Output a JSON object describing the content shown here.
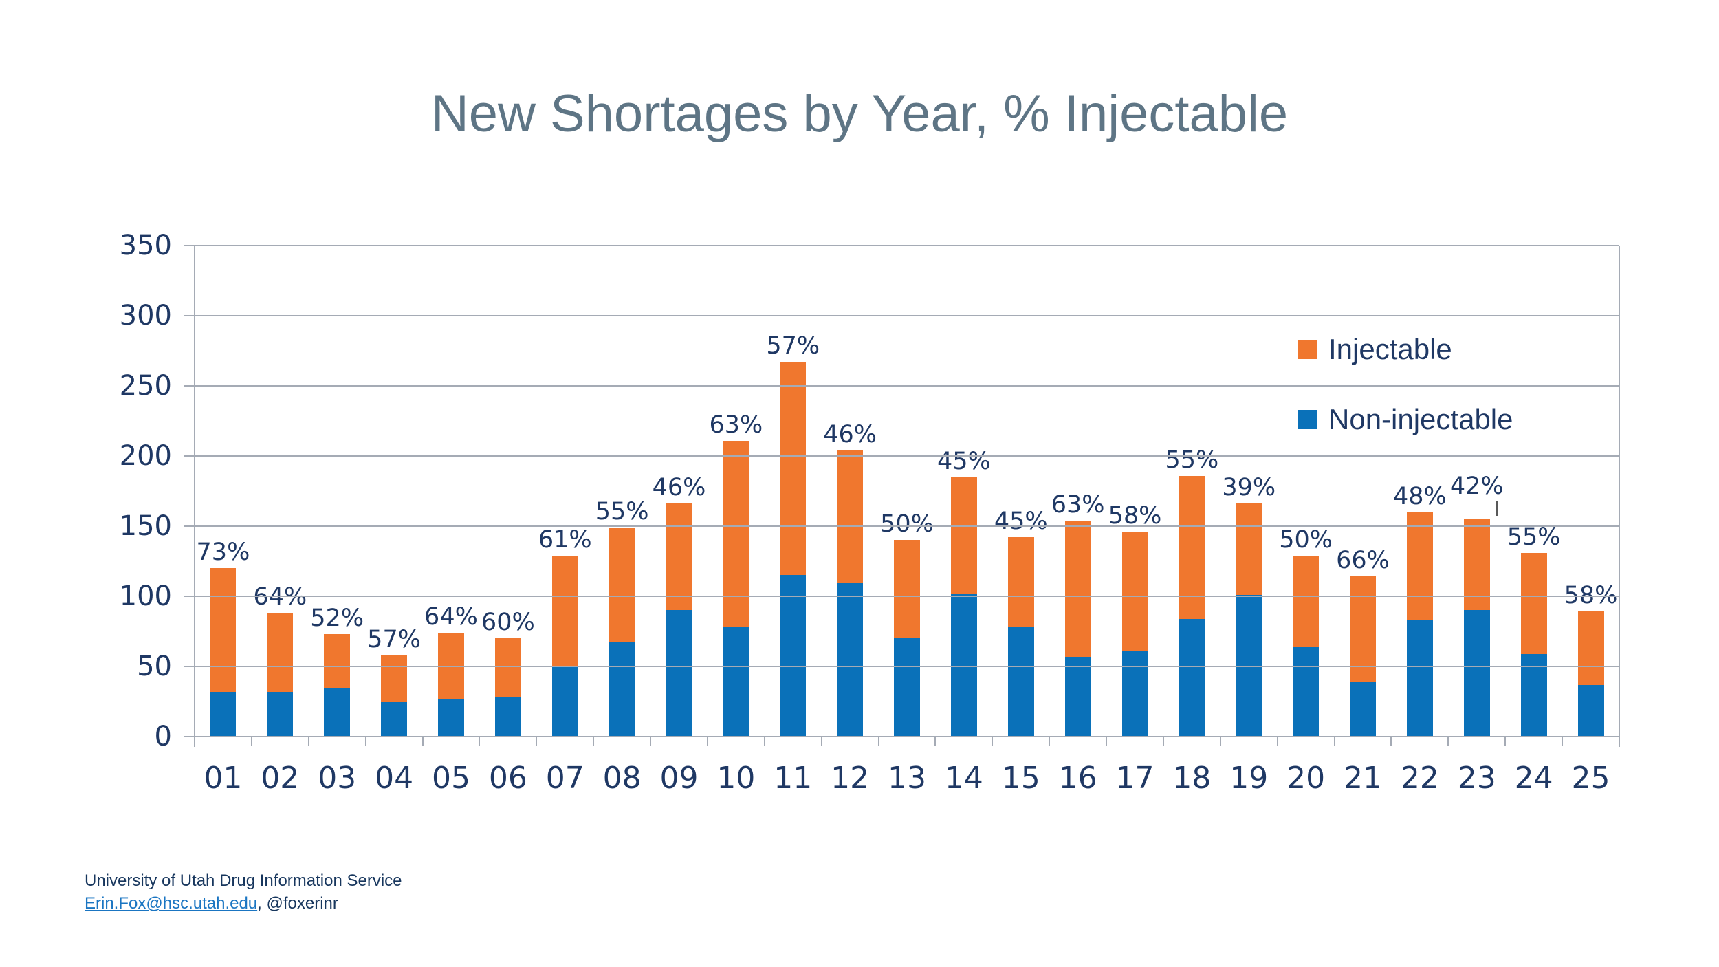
{
  "title": "New Shortages by Year, % Injectable",
  "legend": [
    {
      "label": "Injectable",
      "color": "#F0772E"
    },
    {
      "label": "Non-injectable",
      "color": "#0A71B9"
    }
  ],
  "y_axis": {
    "tick_labels": [
      "350",
      "300",
      "250",
      "200",
      "150",
      "100",
      "50",
      "0"
    ]
  },
  "footer": {
    "line1": "University of Utah Drug Information Service",
    "email": "Erin.Fox@hsc.utah.edu",
    "rest": ", @foxerinr"
  },
  "chart_data": {
    "type": "bar",
    "stacked": true,
    "title": "New Shortages by Year, % Injectable",
    "categories": [
      "01",
      "02",
      "03",
      "04",
      "05",
      "06",
      "07",
      "08",
      "09",
      "10",
      "11",
      "12",
      "13",
      "14",
      "15",
      "16",
      "17",
      "18",
      "19",
      "20",
      "21",
      "22",
      "23",
      "24",
      "25"
    ],
    "series": [
      {
        "name": "Non-injectable",
        "color": "#0A71B9",
        "values": [
          32,
          32,
          35,
          25,
          27,
          28,
          50,
          67,
          90,
          78,
          115,
          110,
          70,
          102,
          78,
          57,
          61,
          84,
          101,
          64,
          39,
          83,
          90,
          59,
          37
        ]
      },
      {
        "name": "Injectable",
        "color": "#F0772E",
        "values": [
          88,
          56,
          38,
          33,
          47,
          42,
          79,
          82,
          76,
          133,
          152,
          94,
          70,
          83,
          64,
          97,
          85,
          102,
          65,
          65,
          75,
          77,
          65,
          72,
          52
        ]
      }
    ],
    "totals": [
      120,
      88,
      73,
      58,
      74,
      70,
      129,
      149,
      166,
      211,
      267,
      204,
      140,
      185,
      142,
      154,
      146,
      186,
      166,
      129,
      114,
      160,
      155,
      131,
      89
    ],
    "pct_labels": [
      "73%",
      "64%",
      "52%",
      "57%",
      "64%",
      "60%",
      "61%",
      "55%",
      "46%",
      "63%",
      "57%",
      "46%",
      "50%",
      "45%",
      "45%",
      "63%",
      "58%",
      "55%",
      "39%",
      "50%",
      "66%",
      "48%",
      "42%",
      "55%",
      "58%"
    ],
    "ylim": [
      0,
      350
    ],
    "y_tick_step": 50,
    "grid": true,
    "legend_position": "upper-right"
  }
}
